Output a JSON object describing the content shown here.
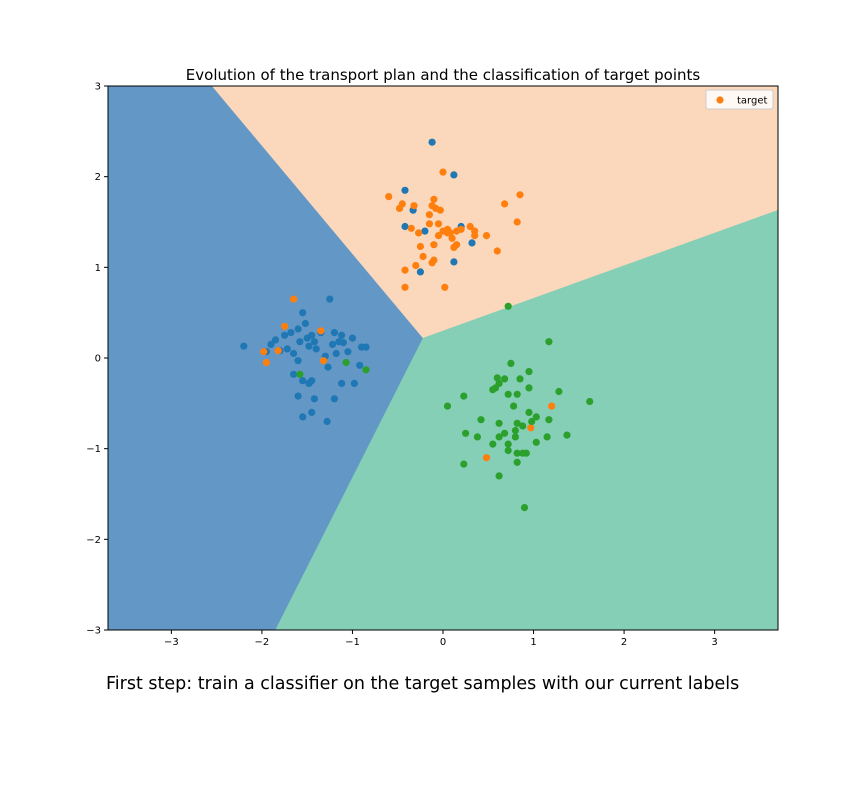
{
  "chart_data": {
    "type": "scatter",
    "title": "Evolution of the transport plan and the classification of target points",
    "xlabel": "",
    "ylabel": "",
    "xlim": [
      -3.7,
      3.7
    ],
    "ylim": [
      -3,
      3
    ],
    "xticks": [
      -3,
      -2,
      -1,
      0,
      1,
      2,
      3
    ],
    "yticks": [
      -3,
      -2,
      -1,
      0,
      1,
      2,
      3
    ],
    "xtick_labels": [
      "−3",
      "−2",
      "−1",
      "0",
      "1",
      "2",
      "3"
    ],
    "ytick_labels": [
      "−3",
      "−2",
      "−1",
      "0",
      "1",
      "2",
      "3"
    ],
    "grid": false,
    "legend": {
      "entries": [
        "target"
      ],
      "placement": "top-right"
    },
    "decision_regions": {
      "junction": [
        -0.22,
        0.22
      ],
      "boundaries": [
        {
          "from": [
            -0.22,
            0.22
          ],
          "to": [
            -2.55,
            3
          ]
        },
        {
          "from": [
            -0.22,
            0.22
          ],
          "to": [
            3.7,
            1.63
          ]
        },
        {
          "from": [
            -0.22,
            0.22
          ],
          "to": [
            -1.85,
            -3
          ]
        }
      ],
      "regions": [
        {
          "class": "blue",
          "color": "#6397c6"
        },
        {
          "class": "orange",
          "color": "#fbd7bc"
        },
        {
          "class": "green",
          "color": "#84cfb5"
        }
      ]
    },
    "series": [
      {
        "name": "target",
        "class": "blue",
        "color": "#1f77b4",
        "points": [
          [
            -2.2,
            0.13
          ],
          [
            -1.95,
            0.07
          ],
          [
            -1.9,
            0.15
          ],
          [
            -1.85,
            0.2
          ],
          [
            -1.8,
            0.08
          ],
          [
            -1.75,
            0.25
          ],
          [
            -1.72,
            0.1
          ],
          [
            -1.68,
            0.28
          ],
          [
            -1.65,
            0.05
          ],
          [
            -1.6,
            0.32
          ],
          [
            -1.58,
            0.18
          ],
          [
            -1.55,
            0.5
          ],
          [
            -1.52,
            0.38
          ],
          [
            -1.5,
            0.22
          ],
          [
            -1.48,
            0.13
          ],
          [
            -1.45,
            0.25
          ],
          [
            -1.42,
            0.18
          ],
          [
            -1.4,
            0.1
          ],
          [
            -1.35,
            0.28
          ],
          [
            -1.3,
            0.02
          ],
          [
            -1.25,
            0.65
          ],
          [
            -1.22,
            0.15
          ],
          [
            -1.2,
            0.28
          ],
          [
            -1.18,
            0.05
          ],
          [
            -1.15,
            0.18
          ],
          [
            -1.12,
            0.25
          ],
          [
            -1.1,
            0.17
          ],
          [
            -1.05,
            0.07
          ],
          [
            -1.0,
            0.22
          ],
          [
            -0.9,
            0.12
          ],
          [
            -0.85,
            0.12
          ],
          [
            -1.65,
            -0.18
          ],
          [
            -1.6,
            -0.03
          ],
          [
            -1.55,
            -0.25
          ],
          [
            -1.48,
            -0.28
          ],
          [
            -1.45,
            -0.25
          ],
          [
            -1.42,
            -0.45
          ],
          [
            -1.6,
            -0.42
          ],
          [
            -1.55,
            -0.65
          ],
          [
            -1.45,
            -0.6
          ],
          [
            -1.27,
            -0.1
          ],
          [
            -1.2,
            -0.45
          ],
          [
            -1.12,
            -0.28
          ],
          [
            -0.98,
            -0.28
          ],
          [
            -0.92,
            -0.08
          ],
          [
            -1.28,
            -0.7
          ],
          [
            -0.12,
            2.38
          ],
          [
            0.12,
            2.02
          ],
          [
            -0.42,
            1.85
          ],
          [
            -0.33,
            1.63
          ],
          [
            -0.42,
            1.45
          ],
          [
            -0.2,
            1.4
          ],
          [
            0.2,
            1.45
          ],
          [
            0.32,
            1.27
          ],
          [
            -0.25,
            0.95
          ],
          [
            0.12,
            1.06
          ]
        ]
      },
      {
        "name": "target",
        "class": "orange",
        "color": "#ff7f0e",
        "points": [
          [
            0.0,
            2.05
          ],
          [
            -0.1,
            1.75
          ],
          [
            0.85,
            1.8
          ],
          [
            0.68,
            1.7
          ],
          [
            -0.6,
            1.78
          ],
          [
            -0.48,
            1.65
          ],
          [
            -0.45,
            1.7
          ],
          [
            -0.32,
            1.68
          ],
          [
            -0.12,
            1.68
          ],
          [
            -0.08,
            1.65
          ],
          [
            -0.03,
            1.63
          ],
          [
            -0.15,
            1.58
          ],
          [
            -0.05,
            1.48
          ],
          [
            -0.15,
            1.48
          ],
          [
            0.05,
            1.42
          ],
          [
            0.0,
            1.4
          ],
          [
            0.08,
            1.38
          ],
          [
            0.15,
            1.4
          ],
          [
            0.2,
            1.42
          ],
          [
            0.3,
            1.45
          ],
          [
            0.35,
            1.4
          ],
          [
            0.48,
            1.35
          ],
          [
            0.82,
            1.5
          ],
          [
            -0.35,
            1.43
          ],
          [
            -0.27,
            1.38
          ],
          [
            -0.05,
            1.35
          ],
          [
            0.1,
            1.32
          ],
          [
            0.05,
            1.38
          ],
          [
            -0.25,
            1.23
          ],
          [
            -0.1,
            1.25
          ],
          [
            0.12,
            1.22
          ],
          [
            0.15,
            1.25
          ],
          [
            0.35,
            1.35
          ],
          [
            0.6,
            1.18
          ],
          [
            -0.22,
            1.12
          ],
          [
            -0.1,
            1.08
          ],
          [
            -0.3,
            1.02
          ],
          [
            -0.12,
            1.05
          ],
          [
            -0.42,
            0.97
          ],
          [
            0.02,
            0.78
          ],
          [
            -0.42,
            0.78
          ],
          [
            -1.65,
            0.65
          ],
          [
            -1.75,
            0.35
          ],
          [
            -1.35,
            0.3
          ],
          [
            -1.98,
            0.07
          ],
          [
            -1.82,
            0.08
          ],
          [
            -1.95,
            -0.05
          ],
          [
            -1.32,
            -0.03
          ],
          [
            1.2,
            -0.53
          ],
          [
            0.97,
            -0.77
          ],
          [
            0.48,
            -1.1
          ]
        ]
      },
      {
        "name": "target",
        "class": "green",
        "color": "#2ca02c",
        "points": [
          [
            0.72,
            0.57
          ],
          [
            1.17,
            0.18
          ],
          [
            -1.58,
            -0.18
          ],
          [
            -1.07,
            -0.05
          ],
          [
            -0.85,
            -0.13
          ],
          [
            0.75,
            -0.06
          ],
          [
            0.95,
            -0.15
          ],
          [
            0.6,
            -0.22
          ],
          [
            0.68,
            -0.23
          ],
          [
            0.85,
            -0.23
          ],
          [
            0.62,
            -0.28
          ],
          [
            0.58,
            -0.33
          ],
          [
            0.55,
            -0.35
          ],
          [
            0.95,
            -0.33
          ],
          [
            1.28,
            -0.37
          ],
          [
            0.72,
            -0.4
          ],
          [
            0.82,
            -0.4
          ],
          [
            0.23,
            -0.42
          ],
          [
            1.62,
            -0.48
          ],
          [
            0.05,
            -0.53
          ],
          [
            0.78,
            -0.53
          ],
          [
            0.95,
            -0.6
          ],
          [
            1.03,
            -0.65
          ],
          [
            1.17,
            -0.68
          ],
          [
            0.42,
            -0.68
          ],
          [
            0.62,
            -0.72
          ],
          [
            0.82,
            -0.72
          ],
          [
            0.88,
            -0.75
          ],
          [
            0.98,
            -0.7
          ],
          [
            0.8,
            -0.8
          ],
          [
            0.68,
            -0.83
          ],
          [
            0.25,
            -0.83
          ],
          [
            0.38,
            -0.87
          ],
          [
            0.62,
            -0.87
          ],
          [
            0.8,
            -0.87
          ],
          [
            1.15,
            -0.87
          ],
          [
            1.37,
            -0.85
          ],
          [
            0.55,
            -0.95
          ],
          [
            1.03,
            -0.93
          ],
          [
            0.72,
            -0.95
          ],
          [
            0.72,
            -1.02
          ],
          [
            0.82,
            -1.05
          ],
          [
            0.88,
            -1.05
          ],
          [
            0.92,
            -1.05
          ],
          [
            0.82,
            -1.15
          ],
          [
            0.23,
            -1.17
          ],
          [
            0.62,
            -1.3
          ],
          [
            0.9,
            -1.65
          ]
        ]
      }
    ]
  },
  "caption": "First step: train a classifier on the target samples with our current labels"
}
